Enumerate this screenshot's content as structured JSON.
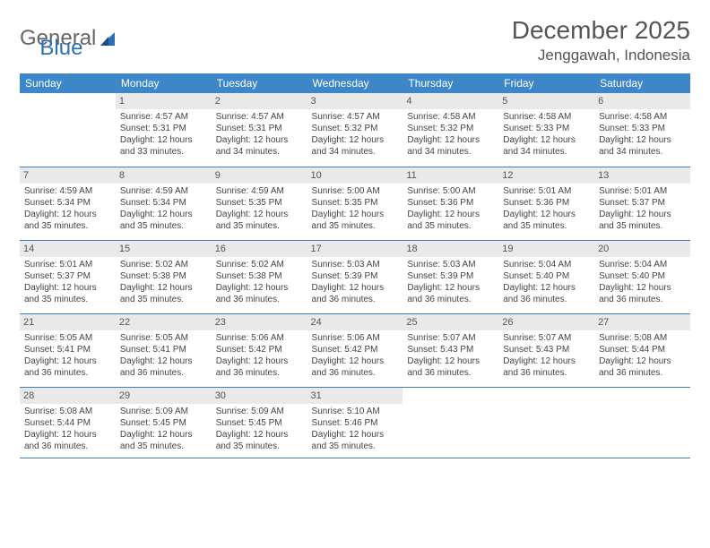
{
  "logo": {
    "text1": "General",
    "text2": "Blue"
  },
  "title": {
    "month": "December 2025",
    "location": "Jenggawah, Indonesia"
  },
  "colors": {
    "header_bg": "#3d87c9",
    "header_text": "#ffffff",
    "daynum_bg": "#e9e9e9",
    "row_border": "#3d7db8",
    "logo_blue": "#2d6fb5"
  },
  "weekdays": [
    "Sunday",
    "Monday",
    "Tuesday",
    "Wednesday",
    "Thursday",
    "Friday",
    "Saturday"
  ],
  "weeks": [
    [
      {
        "n": "",
        "lines": []
      },
      {
        "n": "1",
        "lines": [
          "Sunrise: 4:57 AM",
          "Sunset: 5:31 PM",
          "Daylight: 12 hours and 33 minutes."
        ]
      },
      {
        "n": "2",
        "lines": [
          "Sunrise: 4:57 AM",
          "Sunset: 5:31 PM",
          "Daylight: 12 hours and 34 minutes."
        ]
      },
      {
        "n": "3",
        "lines": [
          "Sunrise: 4:57 AM",
          "Sunset: 5:32 PM",
          "Daylight: 12 hours and 34 minutes."
        ]
      },
      {
        "n": "4",
        "lines": [
          "Sunrise: 4:58 AM",
          "Sunset: 5:32 PM",
          "Daylight: 12 hours and 34 minutes."
        ]
      },
      {
        "n": "5",
        "lines": [
          "Sunrise: 4:58 AM",
          "Sunset: 5:33 PM",
          "Daylight: 12 hours and 34 minutes."
        ]
      },
      {
        "n": "6",
        "lines": [
          "Sunrise: 4:58 AM",
          "Sunset: 5:33 PM",
          "Daylight: 12 hours and 34 minutes."
        ]
      }
    ],
    [
      {
        "n": "7",
        "lines": [
          "Sunrise: 4:59 AM",
          "Sunset: 5:34 PM",
          "Daylight: 12 hours and 35 minutes."
        ]
      },
      {
        "n": "8",
        "lines": [
          "Sunrise: 4:59 AM",
          "Sunset: 5:34 PM",
          "Daylight: 12 hours and 35 minutes."
        ]
      },
      {
        "n": "9",
        "lines": [
          "Sunrise: 4:59 AM",
          "Sunset: 5:35 PM",
          "Daylight: 12 hours and 35 minutes."
        ]
      },
      {
        "n": "10",
        "lines": [
          "Sunrise: 5:00 AM",
          "Sunset: 5:35 PM",
          "Daylight: 12 hours and 35 minutes."
        ]
      },
      {
        "n": "11",
        "lines": [
          "Sunrise: 5:00 AM",
          "Sunset: 5:36 PM",
          "Daylight: 12 hours and 35 minutes."
        ]
      },
      {
        "n": "12",
        "lines": [
          "Sunrise: 5:01 AM",
          "Sunset: 5:36 PM",
          "Daylight: 12 hours and 35 minutes."
        ]
      },
      {
        "n": "13",
        "lines": [
          "Sunrise: 5:01 AM",
          "Sunset: 5:37 PM",
          "Daylight: 12 hours and 35 minutes."
        ]
      }
    ],
    [
      {
        "n": "14",
        "lines": [
          "Sunrise: 5:01 AM",
          "Sunset: 5:37 PM",
          "Daylight: 12 hours and 35 minutes."
        ]
      },
      {
        "n": "15",
        "lines": [
          "Sunrise: 5:02 AM",
          "Sunset: 5:38 PM",
          "Daylight: 12 hours and 35 minutes."
        ]
      },
      {
        "n": "16",
        "lines": [
          "Sunrise: 5:02 AM",
          "Sunset: 5:38 PM",
          "Daylight: 12 hours and 36 minutes."
        ]
      },
      {
        "n": "17",
        "lines": [
          "Sunrise: 5:03 AM",
          "Sunset: 5:39 PM",
          "Daylight: 12 hours and 36 minutes."
        ]
      },
      {
        "n": "18",
        "lines": [
          "Sunrise: 5:03 AM",
          "Sunset: 5:39 PM",
          "Daylight: 12 hours and 36 minutes."
        ]
      },
      {
        "n": "19",
        "lines": [
          "Sunrise: 5:04 AM",
          "Sunset: 5:40 PM",
          "Daylight: 12 hours and 36 minutes."
        ]
      },
      {
        "n": "20",
        "lines": [
          "Sunrise: 5:04 AM",
          "Sunset: 5:40 PM",
          "Daylight: 12 hours and 36 minutes."
        ]
      }
    ],
    [
      {
        "n": "21",
        "lines": [
          "Sunrise: 5:05 AM",
          "Sunset: 5:41 PM",
          "Daylight: 12 hours and 36 minutes."
        ]
      },
      {
        "n": "22",
        "lines": [
          "Sunrise: 5:05 AM",
          "Sunset: 5:41 PM",
          "Daylight: 12 hours and 36 minutes."
        ]
      },
      {
        "n": "23",
        "lines": [
          "Sunrise: 5:06 AM",
          "Sunset: 5:42 PM",
          "Daylight: 12 hours and 36 minutes."
        ]
      },
      {
        "n": "24",
        "lines": [
          "Sunrise: 5:06 AM",
          "Sunset: 5:42 PM",
          "Daylight: 12 hours and 36 minutes."
        ]
      },
      {
        "n": "25",
        "lines": [
          "Sunrise: 5:07 AM",
          "Sunset: 5:43 PM",
          "Daylight: 12 hours and 36 minutes."
        ]
      },
      {
        "n": "26",
        "lines": [
          "Sunrise: 5:07 AM",
          "Sunset: 5:43 PM",
          "Daylight: 12 hours and 36 minutes."
        ]
      },
      {
        "n": "27",
        "lines": [
          "Sunrise: 5:08 AM",
          "Sunset: 5:44 PM",
          "Daylight: 12 hours and 36 minutes."
        ]
      }
    ],
    [
      {
        "n": "28",
        "lines": [
          "Sunrise: 5:08 AM",
          "Sunset: 5:44 PM",
          "Daylight: 12 hours and 36 minutes."
        ]
      },
      {
        "n": "29",
        "lines": [
          "Sunrise: 5:09 AM",
          "Sunset: 5:45 PM",
          "Daylight: 12 hours and 35 minutes."
        ]
      },
      {
        "n": "30",
        "lines": [
          "Sunrise: 5:09 AM",
          "Sunset: 5:45 PM",
          "Daylight: 12 hours and 35 minutes."
        ]
      },
      {
        "n": "31",
        "lines": [
          "Sunrise: 5:10 AM",
          "Sunset: 5:46 PM",
          "Daylight: 12 hours and 35 minutes."
        ]
      },
      {
        "n": "",
        "lines": []
      },
      {
        "n": "",
        "lines": []
      },
      {
        "n": "",
        "lines": []
      }
    ]
  ]
}
